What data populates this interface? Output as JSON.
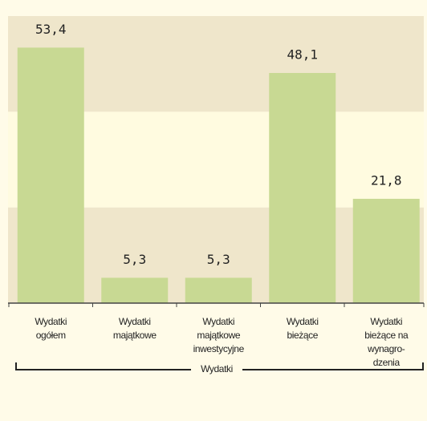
{
  "chart_data": {
    "type": "bar",
    "categories": [
      [
        "Wydatki",
        "ogółem"
      ],
      [
        "Wydatki",
        "majątkowe"
      ],
      [
        "Wydatki",
        "majątkowe",
        "inwestycyjne"
      ],
      [
        "Wydatki",
        "bieżące"
      ],
      [
        "Wydatki",
        "bieżące na",
        "wynagro-",
        "dzenia"
      ]
    ],
    "values": [
      53.4,
      5.3,
      5.3,
      48.1,
      21.8
    ],
    "value_labels": [
      "53,4",
      "5,3",
      "5,3",
      "48,1",
      "21,8"
    ],
    "color": "#c8d993",
    "ylim": [
      0,
      60
    ],
    "yticks": [
      0,
      20,
      40,
      60
    ],
    "band_colors": [
      "#efe6cb",
      "#fffbe0"
    ],
    "group_label": "Wydatki"
  }
}
